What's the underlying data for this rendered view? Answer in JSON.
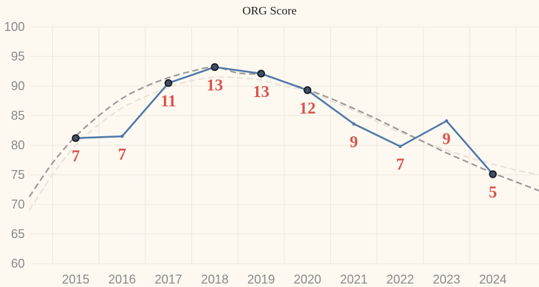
{
  "chart_data": {
    "type": "line",
    "title": "ORG Score",
    "xlabel": "",
    "ylabel": "",
    "x": [
      2015,
      2016,
      2017,
      2018,
      2019,
      2020,
      2021,
      2022,
      2023,
      2024
    ],
    "xlim": [
      2014,
      2025
    ],
    "ylim": [
      58,
      101
    ],
    "yticks": [
      60,
      65,
      70,
      75,
      80,
      85,
      90,
      95,
      100
    ],
    "grid": true,
    "series": [
      {
        "values": [
          81.2,
          81.5,
          90.5,
          93.2,
          92.1,
          89.3,
          83.6,
          79.8,
          84.1,
          75.1
        ],
        "point_labels": [
          "7",
          "7",
          "11",
          "13",
          "13",
          "12",
          "9",
          "7",
          "9",
          "5"
        ],
        "highlighted": [
          true,
          false,
          true,
          true,
          true,
          true,
          false,
          false,
          false,
          true
        ],
        "color": "#4f78a8"
      }
    ],
    "trend_lines": [
      {
        "style": "dashed",
        "color": "#999999",
        "x": [
          2014,
          2014.5,
          2015,
          2015.5,
          2016,
          2016.5,
          2017,
          2017.5,
          2018,
          2018.5,
          2019,
          2019.5,
          2020,
          2020.5,
          2021,
          2021.5,
          2022,
          2022.5,
          2023,
          2023.5,
          2024,
          2024.5,
          2025
        ],
        "values": [
          71.3,
          77.0,
          81.5,
          85.0,
          87.9,
          89.9,
          91.4,
          92.5,
          93.2,
          92.2,
          91.9,
          90.7,
          89.4,
          87.9,
          86.2,
          84.4,
          82.5,
          80.6,
          78.7,
          77.0,
          75.3,
          73.8,
          72.3
        ]
      },
      {
        "style": "dashed",
        "color": "#e8e3da",
        "x": [
          2014,
          2014.5,
          2015,
          2015.5,
          2016,
          2016.5,
          2017,
          2017.5,
          2018,
          2018.5,
          2019,
          2019.5,
          2020,
          2020.5,
          2021,
          2021.5,
          2022,
          2022.5,
          2023,
          2023.5,
          2024,
          2024.5,
          2025
        ],
        "values": [
          69.0,
          75.0,
          80.0,
          83.5,
          86.3,
          88.2,
          89.8,
          90.9,
          91.5,
          91.4,
          91.0,
          90.0,
          89.2,
          87.5,
          85.9,
          84.0,
          82.2,
          80.6,
          79.2,
          77.9,
          76.8,
          75.8,
          75.0
        ]
      }
    ],
    "colors": {
      "background": "#fdf9f1",
      "line": "#4f78a8",
      "marker_fill": "#3f4f66",
      "label": "#d9534f",
      "grid": "#ece7dc",
      "tick_text": "#8a8a8a"
    }
  }
}
